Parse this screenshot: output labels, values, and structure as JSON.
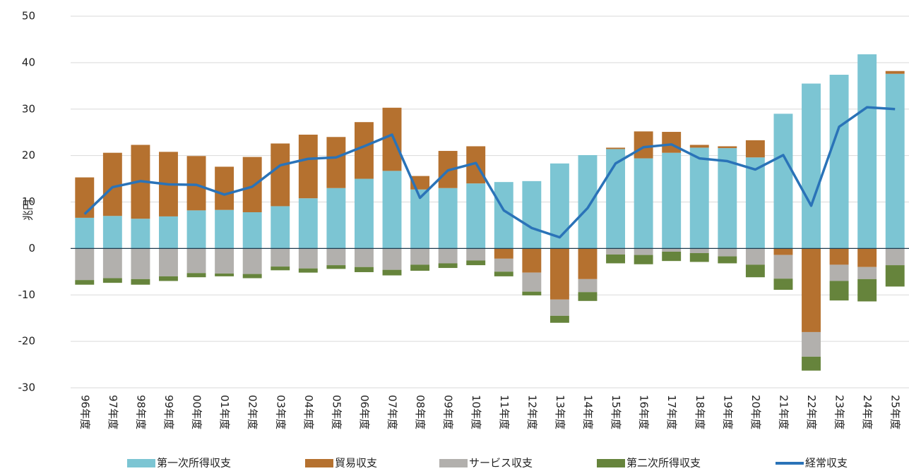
{
  "chart_data": {
    "type": "bar",
    "stacked": true,
    "y_label": "兆円",
    "categories": [
      "96年度",
      "97年度",
      "98年度",
      "99年度",
      "00年度",
      "01年度",
      "02年度",
      "03年度",
      "04年度",
      "05年度",
      "06年度",
      "07年度",
      "08年度",
      "09年度",
      "10年度",
      "11年度",
      "12年度",
      "13年度",
      "14年度",
      "15年度",
      "16年度",
      "17年度",
      "18年度",
      "19年度",
      "20年度",
      "21年度",
      "22年度",
      "23年度",
      "24年度",
      "25年度"
    ],
    "series": [
      {
        "name": "第一次所得収支",
        "type": "bar",
        "color": "#7cc5d3",
        "values": [
          6.6,
          7.0,
          6.4,
          6.9,
          8.2,
          8.3,
          7.8,
          9.1,
          10.8,
          13.0,
          15.0,
          16.7,
          12.7,
          13.0,
          14.0,
          14.3,
          14.5,
          18.3,
          20.1,
          21.4,
          19.4,
          20.6,
          21.7,
          21.6,
          19.6,
          29.0,
          35.5,
          37.4,
          41.8,
          37.6
        ]
      },
      {
        "name": "貿易収支",
        "type": "bar",
        "color": "#b5712f",
        "values": [
          8.7,
          13.6,
          15.9,
          13.9,
          11.7,
          9.3,
          11.9,
          13.5,
          13.7,
          11.0,
          12.2,
          13.6,
          2.9,
          8.0,
          8.0,
          -2.2,
          -5.2,
          -11.0,
          -6.6,
          0.3,
          5.8,
          4.5,
          0.6,
          0.4,
          3.7,
          -1.4,
          -18.0,
          -3.5,
          -4.0,
          0.6
        ]
      },
      {
        "name": "サービス収支",
        "type": "bar",
        "color": "#b2b0ad",
        "values": [
          -6.8,
          -6.4,
          -6.6,
          -6.0,
          -5.3,
          -5.4,
          -5.5,
          -3.9,
          -4.3,
          -3.6,
          -4.0,
          -4.6,
          -3.5,
          -3.2,
          -2.6,
          -2.8,
          -4.1,
          -3.5,
          -2.8,
          -1.3,
          -1.4,
          -0.7,
          -1.0,
          -1.7,
          -3.5,
          -5.1,
          -5.3,
          -3.5,
          -2.6,
          -3.6
        ]
      },
      {
        "name": "第二次所得収支",
        "type": "bar",
        "color": "#66843c",
        "values": [
          -1.0,
          -1.0,
          -1.2,
          -1.0,
          -0.9,
          -0.6,
          -0.9,
          -0.8,
          -0.9,
          -0.8,
          -1.1,
          -1.2,
          -1.3,
          -1.0,
          -1.0,
          -1.0,
          -0.8,
          -1.5,
          -1.9,
          -1.9,
          -2.0,
          -2.0,
          -1.9,
          -1.5,
          -2.7,
          -2.4,
          -3.0,
          -4.2,
          -4.8,
          -4.6
        ]
      },
      {
        "name": "経常収支",
        "type": "line",
        "color": "#2a73b8",
        "values": [
          7.4,
          13.2,
          14.5,
          13.8,
          13.7,
          11.6,
          13.3,
          17.9,
          19.3,
          19.6,
          22.0,
          24.5,
          10.9,
          16.8,
          18.4,
          8.2,
          4.4,
          2.4,
          8.7,
          18.3,
          21.8,
          22.4,
          19.4,
          18.8,
          17.0,
          20.1,
          9.2,
          26.2,
          30.4,
          30.0
        ]
      }
    ],
    "ylim": [
      -30,
      50
    ],
    "yticks": [
      -30,
      -20,
      -10,
      0,
      10,
      20,
      30,
      40,
      50
    ],
    "grid": true,
    "legend": "bottom"
  }
}
